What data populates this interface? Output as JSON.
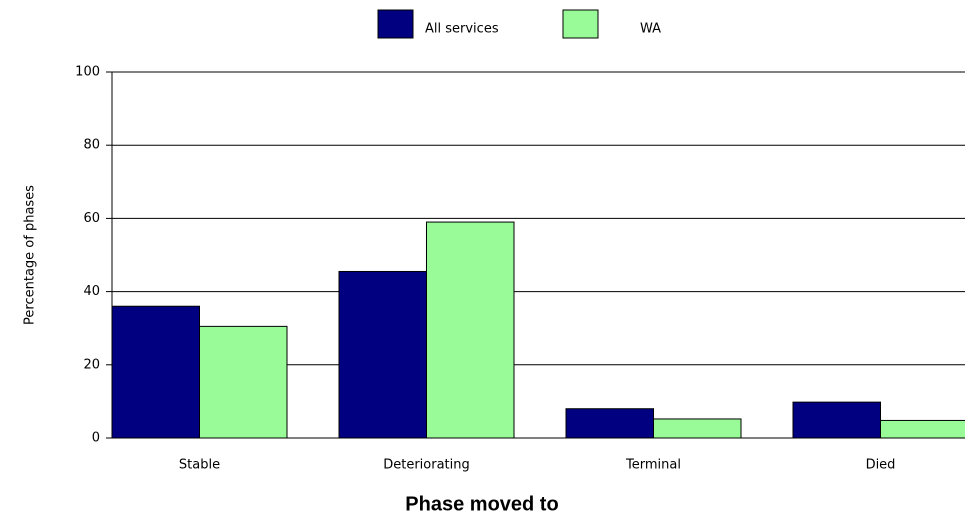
{
  "chart_data": {
    "type": "bar",
    "x_label": "Phase moved to",
    "y_label": "Percentage of phases",
    "categories": [
      "Stable",
      "Deteriorating",
      "Terminal",
      "Died"
    ],
    "series": [
      {
        "name": "All services",
        "color": "#000080",
        "values": [
          36,
          45.5,
          8,
          9.8
        ]
      },
      {
        "name": "WA",
        "color": "#98fb98",
        "values": [
          30.5,
          59,
          5.2,
          4.8
        ]
      }
    ],
    "ylim": [
      0,
      100
    ],
    "yticks": [
      0,
      20,
      40,
      60,
      80,
      100
    ],
    "grid": true
  }
}
